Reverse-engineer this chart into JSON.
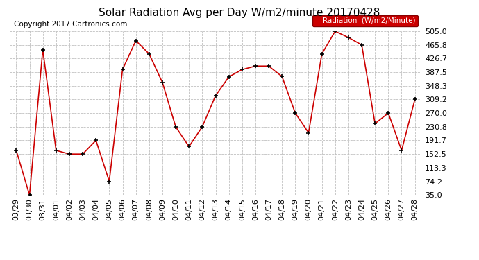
{
  "title": "Solar Radiation Avg per Day W/m2/minute 20170428",
  "copyright": "Copyright 2017 Cartronics.com",
  "legend_label": "Radiation  (W/m2/Minute)",
  "dates": [
    "03/29",
    "03/30",
    "03/31",
    "04/01",
    "04/02",
    "04/03",
    "04/04",
    "04/05",
    "04/06",
    "04/07",
    "04/08",
    "04/09",
    "04/10",
    "04/11",
    "04/12",
    "04/13",
    "04/14",
    "04/15",
    "04/16",
    "04/17",
    "04/18",
    "04/19",
    "04/20",
    "04/21",
    "04/22",
    "04/23",
    "04/24",
    "04/25",
    "04/26",
    "04/27",
    "04/28"
  ],
  "values": [
    163.0,
    35.0,
    452.0,
    163.0,
    152.5,
    152.5,
    191.7,
    74.2,
    395.0,
    478.0,
    440.0,
    358.0,
    230.8,
    174.0,
    230.8,
    320.0,
    374.0,
    395.0,
    405.0,
    405.0,
    375.0,
    270.0,
    213.5,
    440.0,
    505.0,
    487.0,
    465.8,
    240.0,
    270.0,
    163.0,
    309.2
  ],
  "ylim": [
    35.0,
    505.0
  ],
  "yticks": [
    35.0,
    74.2,
    113.3,
    152.5,
    191.7,
    230.8,
    270.0,
    309.2,
    348.3,
    387.5,
    426.7,
    465.8,
    505.0
  ],
  "line_color": "#cc0000",
  "marker_color": "#000000",
  "bg_color": "#ffffff",
  "grid_color": "#c0c0c0",
  "title_fontsize": 11,
  "copyright_fontsize": 7.5,
  "legend_bg": "#cc0000",
  "legend_text_color": "#ffffff",
  "tick_fontsize": 8
}
